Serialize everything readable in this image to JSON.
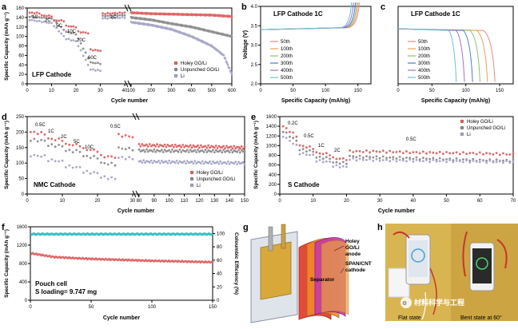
{
  "panels": {
    "a": {
      "letter": "a",
      "label": "LFP Cathode",
      "xlabel": "Cycle number",
      "ylabel": "Specific Capacity (mAh g⁻¹)",
      "rates": [
        "1C",
        "2C",
        "5C",
        "10C",
        "20C",
        "60C",
        "1C"
      ],
      "legend": [
        "Holey GO/Li",
        "Unpunched GO/Li",
        "Li"
      ],
      "xticks": [
        "0",
        "10",
        "20",
        "30",
        "40",
        "100",
        "200",
        "300",
        "400",
        "500",
        "600"
      ],
      "yticks": [
        "0",
        "20",
        "40",
        "60",
        "80",
        "100",
        "120",
        "140",
        "160"
      ]
    },
    "b": {
      "letter": "b",
      "title": "LFP Cathode 1C",
      "xlabel": "Specific Capacity (mAh/g)",
      "ylabel": "Voltage (V)",
      "legend": [
        "50th",
        "100th",
        "200th",
        "300th",
        "400th",
        "500th"
      ],
      "xticks": [
        "0",
        "50",
        "100",
        "150"
      ],
      "yticks": [
        "2.0",
        "2.5",
        "3.0",
        "3.5",
        "4.0"
      ]
    },
    "c": {
      "letter": "c",
      "title": "LFP Cathode 1C",
      "xlabel": "Specific Capacity (mAh/g)",
      "legend": [
        "50th",
        "100th",
        "200th",
        "300th",
        "400th",
        "500th"
      ],
      "xticks": [
        "0",
        "50",
        "100",
        "150"
      ]
    },
    "d": {
      "letter": "d",
      "label": "NMC Cathode",
      "xlabel": "Cycle number",
      "ylabel": "Specific Capacity (mAh g⁻¹)",
      "rates": [
        "0.5C",
        "1C",
        "2C",
        "5C",
        "10C",
        "0.5C"
      ],
      "legend": [
        "Holey GO/Li",
        "Unpunched GO/Li",
        "Li"
      ],
      "xticks": [
        "0",
        "10",
        "20",
        "30",
        "80",
        "90",
        "100",
        "110",
        "120",
        "130",
        "140",
        "150"
      ],
      "yticks": [
        "0",
        "50",
        "100",
        "150",
        "200",
        "250"
      ]
    },
    "e": {
      "letter": "e",
      "label": "S Cathode",
      "xlabel": "Cycle number",
      "ylabel": "Specific Capacity (mAh g⁻¹)",
      "rates": [
        "0.2C",
        "0.5C",
        "1C",
        "2C",
        "0.5C"
      ],
      "legend": [
        "Holey GO/Li",
        "Unpunched GO/Li",
        "Li"
      ],
      "xticks": [
        "0",
        "10",
        "20",
        "30",
        "40",
        "50",
        "60",
        "70"
      ],
      "yticks": [
        "0",
        "200",
        "400",
        "600",
        "800",
        "1000",
        "1200",
        "1400",
        "1600"
      ]
    },
    "f": {
      "letter": "f",
      "label1": "Pouch cell",
      "label2": "S loading= 9.747 mg",
      "xlabel": "Cycle number",
      "ylabel": "Specific Capacity (mAh g⁻¹)",
      "ylabel2": "Coloumbic Efficiency (%)",
      "xticks": [
        "0",
        "50",
        "100",
        "150"
      ],
      "yticks": [
        "0",
        "400",
        "800",
        "1200",
        "1600"
      ],
      "y2ticks": [
        "0",
        "20",
        "40",
        "60",
        "80",
        "100"
      ]
    },
    "g": {
      "letter": "g",
      "label_anode": "Holey\nGO/Li\nanode",
      "label_sep": "Separator",
      "label_cath": "SPAN/CNT\ncathode"
    },
    "h": {
      "letter": "h",
      "label_flat": "Flat state",
      "label_bent": "Bent state at 60°",
      "watermark": "材料科学与工程"
    }
  },
  "chart_data": [
    {
      "panel": "a",
      "type": "scatter",
      "series": [
        {
          "name": "Holey GO/Li",
          "color": "#e06666",
          "points": [
            [
              1,
              150
            ],
            [
              5,
              149
            ],
            [
              6,
              144
            ],
            [
              10,
              143
            ],
            [
              11,
              134
            ],
            [
              15,
              133
            ],
            [
              16,
              122
            ],
            [
              20,
              120
            ],
            [
              21,
              110
            ],
            [
              25,
              107
            ],
            [
              26,
              72
            ],
            [
              30,
              70
            ],
            [
              31,
              148
            ],
            [
              40,
              150
            ],
            [
              100,
              150
            ],
            [
              200,
              148
            ],
            [
              300,
              147
            ],
            [
              400,
              146
            ],
            [
              500,
              145
            ],
            [
              600,
              142
            ]
          ]
        },
        {
          "name": "Unpunched GO/Li",
          "color": "#909090",
          "points": [
            [
              1,
              142
            ],
            [
              10,
              138
            ],
            [
              16,
              110
            ],
            [
              20,
              105
            ],
            [
              26,
              45
            ],
            [
              30,
              43
            ],
            [
              31,
              143
            ],
            [
              40,
              145
            ],
            [
              100,
              140
            ],
            [
              200,
              135
            ],
            [
              300,
              127
            ],
            [
              400,
              120
            ],
            [
              500,
              110
            ],
            [
              600,
              100
            ]
          ]
        },
        {
          "name": "Li",
          "color": "#a8a8c8",
          "points": [
            [
              1,
              135
            ],
            [
              10,
              128
            ],
            [
              16,
              95
            ],
            [
              20,
              90
            ],
            [
              26,
              30
            ],
            [
              30,
              28
            ],
            [
              31,
              138
            ],
            [
              40,
              140
            ],
            [
              100,
              130
            ],
            [
              200,
              124
            ],
            [
              300,
              115
            ],
            [
              400,
              100
            ],
            [
              500,
              80
            ],
            [
              560,
              60
            ],
            [
              600,
              20
            ]
          ]
        }
      ]
    },
    {
      "panel": "d",
      "type": "scatter",
      "series": [
        {
          "name": "Holey GO/Li",
          "color": "#e06666",
          "points": [
            [
              1,
              200
            ],
            [
              5,
              195
            ],
            [
              6,
              178
            ],
            [
              10,
              175
            ],
            [
              11,
              160
            ],
            [
              15,
              158
            ],
            [
              16,
              145
            ],
            [
              20,
              140
            ],
            [
              21,
              122
            ],
            [
              25,
              120
            ],
            [
              26,
              190
            ],
            [
              30,
              185
            ],
            [
              80,
              158
            ],
            [
              150,
              150
            ]
          ]
        },
        {
          "name": "Unpunched GO/Li",
          "color": "#909090",
          "points": [
            [
              1,
              175
            ],
            [
              5,
              172
            ],
            [
              6,
              158
            ],
            [
              10,
              155
            ],
            [
              11,
              140
            ],
            [
              15,
              138
            ],
            [
              16,
              122
            ],
            [
              20,
              118
            ],
            [
              21,
              100
            ],
            [
              25,
              96
            ],
            [
              26,
              148
            ],
            [
              30,
              145
            ],
            [
              80,
              140
            ],
            [
              150,
              138
            ]
          ]
        },
        {
          "name": "Li",
          "color": "#a8a8c8",
          "points": [
            [
              1,
              125
            ],
            [
              5,
              122
            ],
            [
              6,
              110
            ],
            [
              10,
              105
            ],
            [
              11,
              90
            ],
            [
              15,
              85
            ],
            [
              16,
              72
            ],
            [
              20,
              68
            ],
            [
              21,
              55
            ],
            [
              25,
              50
            ],
            [
              26,
              118
            ],
            [
              30,
              115
            ],
            [
              80,
              105
            ],
            [
              150,
              100
            ]
          ]
        }
      ]
    },
    {
      "panel": "e",
      "type": "scatter",
      "series": [
        {
          "name": "Holey GO/Li",
          "color": "#e06666",
          "points": [
            [
              1,
              1400
            ],
            [
              5,
              1200
            ],
            [
              6,
              1000
            ],
            [
              10,
              950
            ],
            [
              11,
              850
            ],
            [
              15,
              820
            ],
            [
              16,
              740
            ],
            [
              20,
              720
            ],
            [
              21,
              880
            ],
            [
              30,
              880
            ],
            [
              40,
              860
            ],
            [
              50,
              850
            ],
            [
              60,
              840
            ],
            [
              70,
              820
            ]
          ]
        },
        {
          "name": "Unpunched GO/Li",
          "color": "#909090",
          "points": [
            [
              1,
              1300
            ],
            [
              5,
              1100
            ],
            [
              6,
              920
            ],
            [
              10,
              880
            ],
            [
              11,
              760
            ],
            [
              15,
              740
            ],
            [
              16,
              650
            ],
            [
              20,
              640
            ],
            [
              21,
              780
            ],
            [
              30,
              760
            ],
            [
              40,
              740
            ],
            [
              50,
              720
            ],
            [
              60,
              700
            ],
            [
              70,
              690
            ]
          ]
        },
        {
          "name": "Li",
          "color": "#a8a8c8",
          "points": [
            [
              1,
              1200
            ],
            [
              5,
              1000
            ],
            [
              6,
              840
            ],
            [
              10,
              800
            ],
            [
              11,
              690
            ],
            [
              15,
              660
            ],
            [
              16,
              580
            ],
            [
              20,
              560
            ],
            [
              21,
              720
            ],
            [
              30,
              700
            ],
            [
              40,
              690
            ],
            [
              50,
              680
            ],
            [
              60,
              670
            ],
            [
              70,
              660
            ]
          ]
        }
      ]
    },
    {
      "panel": "f",
      "type": "scatter",
      "series": [
        {
          "name": "capacity",
          "color": "#e06666",
          "points": [
            [
              1,
              1020
            ],
            [
              20,
              940
            ],
            [
              50,
              900
            ],
            [
              100,
              860
            ],
            [
              150,
              830
            ]
          ]
        },
        {
          "name": "efficiency",
          "color": "#3cc0c0",
          "points": [
            [
              1,
              99
            ],
            [
              150,
              99
            ]
          ]
        }
      ]
    }
  ]
}
